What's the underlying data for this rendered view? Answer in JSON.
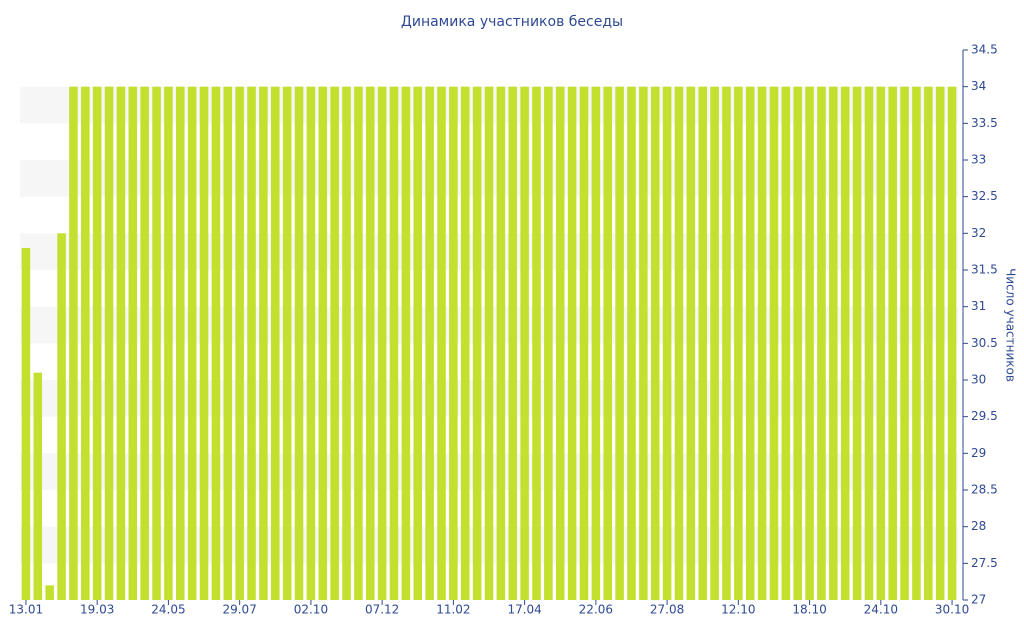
{
  "chart_data": {
    "type": "bar",
    "title": "Динамика участников беседы",
    "y_label": "Число участников",
    "categories": [
      "13.01",
      null,
      null,
      null,
      null,
      null,
      "19.03",
      null,
      null,
      null,
      null,
      null,
      "24.05",
      null,
      null,
      null,
      null,
      null,
      "29.07",
      null,
      null,
      null,
      null,
      null,
      "02.10",
      null,
      null,
      null,
      null,
      null,
      "07.12",
      null,
      null,
      null,
      null,
      null,
      "11.02",
      null,
      null,
      null,
      null,
      null,
      "17.04",
      null,
      null,
      null,
      null,
      null,
      "22.06",
      null,
      null,
      null,
      null,
      null,
      "27.08",
      null,
      null,
      null,
      null,
      null,
      "12.10",
      null,
      null,
      null,
      null,
      null,
      "18.10",
      null,
      null,
      null,
      null,
      null,
      "24.10",
      null,
      null,
      null,
      null,
      null,
      "30.10"
    ],
    "values": [
      31.8,
      30.1,
      27.2,
      32,
      34,
      34,
      34,
      34,
      34,
      34,
      34,
      34,
      34,
      34,
      34,
      34,
      34,
      34,
      34,
      34,
      34,
      34,
      34,
      34,
      34,
      34,
      34,
      34,
      34,
      34,
      34,
      34,
      34,
      34,
      34,
      34,
      34,
      34,
      34,
      34,
      34,
      34,
      34,
      34,
      34,
      34,
      34,
      34,
      34,
      34,
      34,
      34,
      34,
      34,
      34,
      34,
      34,
      34,
      34,
      34,
      34,
      34,
      34,
      34,
      34,
      34,
      34,
      34,
      34,
      34,
      34,
      34,
      34,
      34,
      34,
      34,
      34,
      34,
      34
    ],
    "color": "#c3e02f",
    "ylim": [
      27,
      34.5
    ],
    "yticks": [
      27,
      27.5,
      28,
      28.5,
      29,
      29.5,
      30,
      30.5,
      31,
      31.5,
      32,
      32.5,
      33,
      33.5,
      34,
      34.5
    ],
    "y_axis_side": "right",
    "grid": true
  }
}
